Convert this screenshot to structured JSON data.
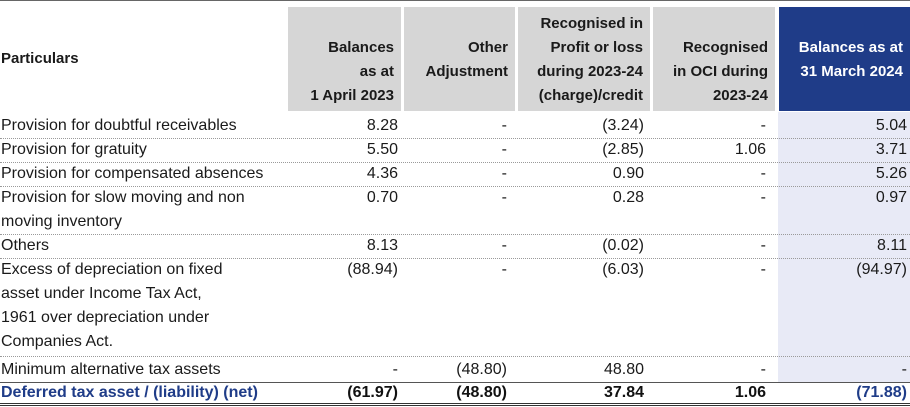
{
  "headers": {
    "particulars": "Particulars",
    "col1": [
      "Balances",
      "as at",
      "1 April 2023"
    ],
    "col2": [
      "Other",
      "Adjustment"
    ],
    "col3": [
      "Recognised in",
      "Profit or loss",
      "during 2023-24",
      "(charge)/credit"
    ],
    "col4": [
      "Recognised",
      "in OCI during",
      "2023-24"
    ],
    "col5": [
      "Balances as at",
      "31 March 2024"
    ]
  },
  "rows": [
    {
      "label": [
        "Provision for doubtful receivables"
      ],
      "values": [
        "8.28",
        "-",
        "(3.24)",
        "-",
        "5.04"
      ]
    },
    {
      "label": [
        "Provision for gratuity"
      ],
      "values": [
        "5.50",
        "-",
        "(2.85)",
        "1.06",
        "3.71"
      ]
    },
    {
      "label": [
        "Provision for compensated absences"
      ],
      "values": [
        "4.36",
        "-",
        "0.90",
        "-",
        "5.26"
      ]
    },
    {
      "label": [
        "Provision for slow moving and non",
        "moving inventory"
      ],
      "values": [
        "0.70",
        "-",
        "0.28",
        "-",
        "0.97"
      ]
    },
    {
      "label": [
        "Others"
      ],
      "values": [
        "8.13",
        "-",
        "(0.02)",
        "-",
        "8.11"
      ]
    },
    {
      "label": [
        "Excess of depreciation on fixed",
        "asset under Income Tax Act,",
        "1961 over depreciation under",
        "Companies Act."
      ],
      "values": [
        "(88.94)",
        "-",
        "(6.03)",
        "-",
        "(94.97)"
      ]
    },
    {
      "label": [
        "Minimum alternative tax assets"
      ],
      "values": [
        "-",
        "(48.80)",
        "48.80",
        "-",
        "-"
      ]
    }
  ],
  "total": {
    "label": "Deferred tax asset / (liability) (net)",
    "values": [
      "(61.97)",
      "(48.80)",
      "37.84",
      "1.06",
      "(71.88)"
    ]
  },
  "colors": {
    "header_grey": "#d6d6d6",
    "header_blue": "#1f3c88",
    "band": "#e8eaf6"
  }
}
